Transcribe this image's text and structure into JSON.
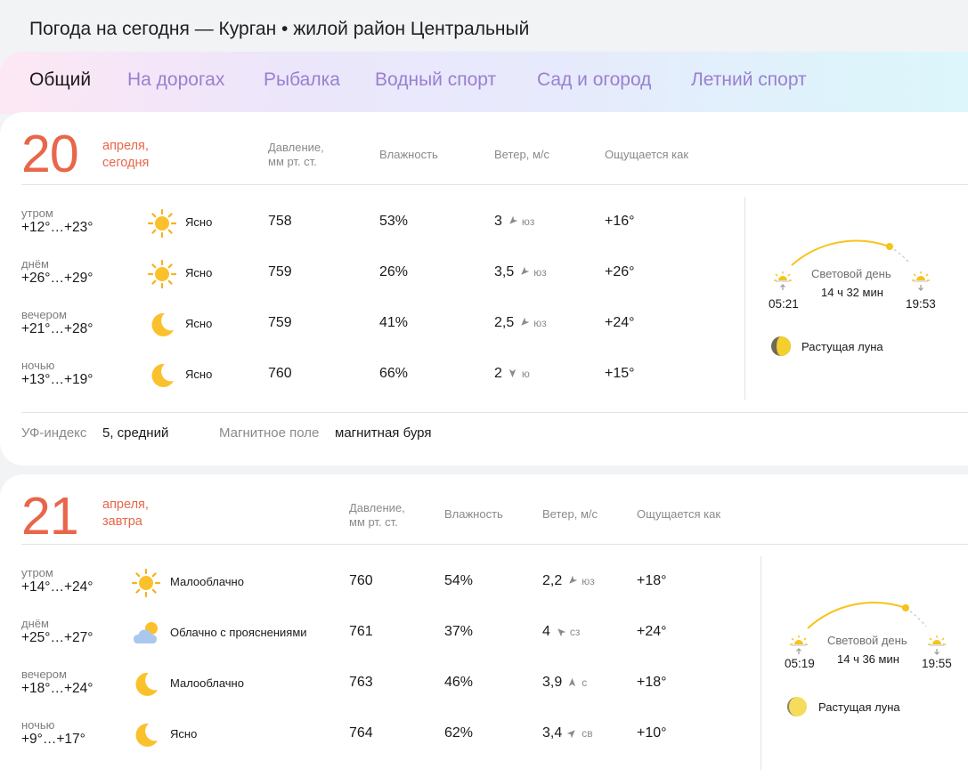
{
  "page_title": "Погода на сегодня — Курган • жилой район Центральный",
  "tabs": [
    "Общий",
    "На дорогах",
    "Рыбалка",
    "Водный спорт",
    "Сад и огород",
    "Летний спорт"
  ],
  "colors": {
    "accent": "#e8664a",
    "tab_inactive": "#9a7fd0",
    "sun": "#f6c31a"
  },
  "days": [
    {
      "day": "20",
      "month": "апреля,",
      "rel": "сегодня",
      "headers": {
        "pressure": "Давление,\nмм рт. ст.",
        "humidity": "Влажность",
        "wind": "Ветер, м/с",
        "feels": "Ощущается как"
      },
      "rows": [
        {
          "part": "утром",
          "temp": "+12°…+23°",
          "icon": "sun-icon",
          "cond": "Ясно",
          "pressure": "758",
          "humidity": "53%",
          "wind": "3",
          "wind_dir": "юз",
          "wind_arrow": "sw",
          "feels": "+16°"
        },
        {
          "part": "днём",
          "temp": "+26°…+29°",
          "icon": "sun-icon",
          "cond": "Ясно",
          "pressure": "759",
          "humidity": "26%",
          "wind": "3,5",
          "wind_dir": "юз",
          "wind_arrow": "sw",
          "feels": "+26°"
        },
        {
          "part": "вечером",
          "temp": "+21°…+28°",
          "icon": "moon-icon",
          "cond": "Ясно",
          "pressure": "759",
          "humidity": "41%",
          "wind": "2,5",
          "wind_dir": "юз",
          "wind_arrow": "sw",
          "feels": "+24°"
        },
        {
          "part": "ночью",
          "temp": "+13°…+19°",
          "icon": "moon-icon",
          "cond": "Ясно",
          "pressure": "760",
          "humidity": "66%",
          "wind": "2",
          "wind_dir": "ю",
          "wind_arrow": "s",
          "feels": "+15°"
        }
      ],
      "sunrise": "05:21",
      "sunset": "19:53",
      "daylight_label": "Световой день",
      "daylight": "14 ч 32 мин",
      "moon": "Растущая луна",
      "uv_label": "УФ-индекс",
      "uv_value": "5, средний",
      "magnetic_label": "Магнитное поле",
      "magnetic_value": "магнитная буря"
    },
    {
      "day": "21",
      "month": "апреля,",
      "rel": "завтра",
      "headers": {
        "pressure": "Давление,\nмм рт. ст.",
        "humidity": "Влажность",
        "wind": "Ветер, м/с",
        "feels": "Ощущается как"
      },
      "rows": [
        {
          "part": "утром",
          "temp": "+14°…+24°",
          "icon": "sun-icon",
          "cond": "Малооблачно",
          "pressure": "760",
          "humidity": "54%",
          "wind": "2,2",
          "wind_dir": "юз",
          "wind_arrow": "sw",
          "feels": "+18°"
        },
        {
          "part": "днём",
          "temp": "+25°…+27°",
          "icon": "cloud-sun-icon",
          "cond": "Облачно с прояснениями",
          "pressure": "761",
          "humidity": "37%",
          "wind": "4",
          "wind_dir": "сз",
          "wind_arrow": "nw",
          "feels": "+24°"
        },
        {
          "part": "вечером",
          "temp": "+18°…+24°",
          "icon": "moon-icon",
          "cond": "Малооблачно",
          "pressure": "763",
          "humidity": "46%",
          "wind": "3,9",
          "wind_dir": "с",
          "wind_arrow": "n",
          "feels": "+18°"
        },
        {
          "part": "ночью",
          "temp": "+9°…+17°",
          "icon": "moon-icon",
          "cond": "Ясно",
          "pressure": "764",
          "humidity": "62%",
          "wind": "3,4",
          "wind_dir": "св",
          "wind_arrow": "ne",
          "feels": "+10°"
        }
      ],
      "sunrise": "05:19",
      "sunset": "19:55",
      "daylight_label": "Световой день",
      "daylight": "14 ч 36 мин",
      "moon": "Растущая луна"
    }
  ]
}
